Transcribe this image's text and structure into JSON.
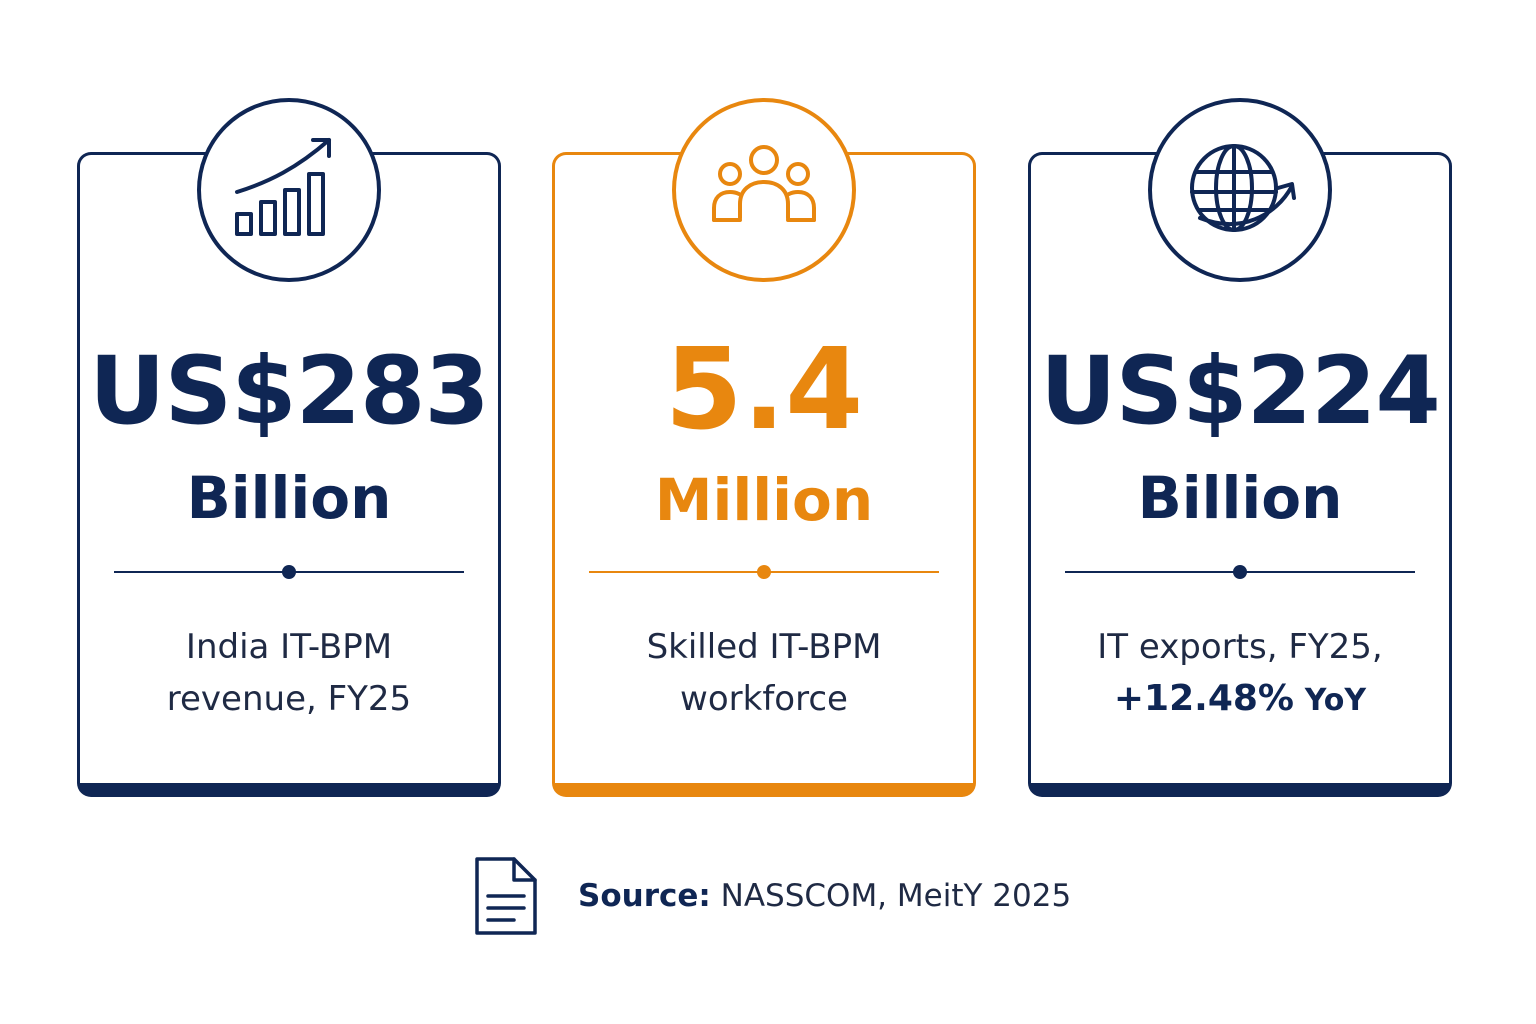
{
  "colors": {
    "navy": "#0f2654",
    "orange": "#e8870f"
  },
  "cards": [
    {
      "icon": "growth-chart-icon",
      "value": "US$283",
      "unit": "Billion",
      "description_lines": [
        "India IT-BPM",
        "revenue, FY25"
      ]
    },
    {
      "icon": "people-group-icon",
      "value": "5.4",
      "unit": "Million",
      "description_lines": [
        "Skilled IT-BPM",
        "workforce"
      ]
    },
    {
      "icon": "globe-arrow-icon",
      "value": "US$224",
      "unit": "Billion",
      "description_lines": [
        "IT exports, FY25,"
      ],
      "growth": "+12.48%",
      "growth_suffix": "YoY"
    }
  ],
  "source": {
    "icon": "document-icon",
    "label": "Source:",
    "text": "NASSCOM, MeitY 2025"
  }
}
